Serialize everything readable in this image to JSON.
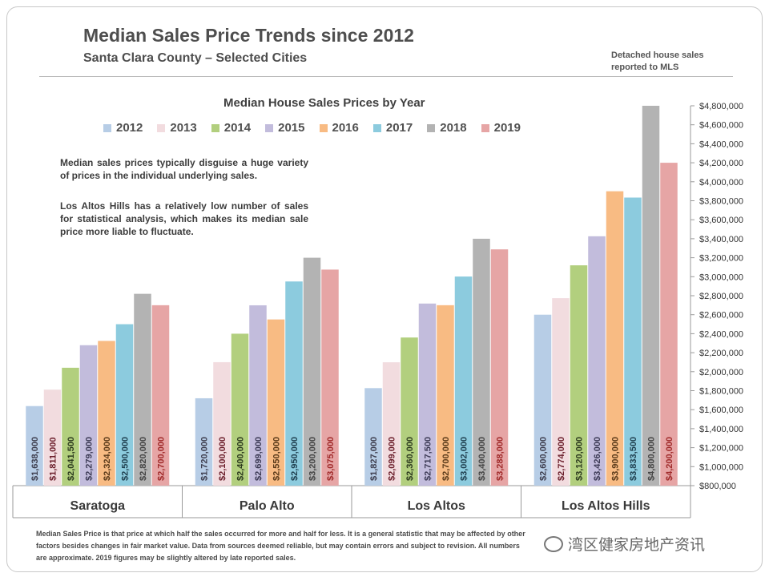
{
  "header": {
    "title": "Median Sales Price Trends since 2012",
    "subtitle": "Santa Clara County – Selected Cities",
    "source_note": "Detached house sales reported to MLS"
  },
  "notes": {
    "paragraph1": "Median sales prices typically disguise a huge variety of prices in the individual underlying sales.",
    "paragraph2": "Los Altos Hills has a relatively low number of sales for statistical analysis, which makes its median sale price more liable to fluctuate."
  },
  "footnote": "Median Sales Price is that price at which half the sales occurred for more and half for less. It is a general statistic that may be affected by other factors besides changes in fair market value. Data from sources deemed reliable, but may contain errors and subject to revision.  All numbers are approximate. 2019 figures may be slightly altered by late reported sales.",
  "watermark": "湾区健家房地产资讯",
  "chart_data": {
    "type": "bar",
    "title": "Median House Sales Prices by Year",
    "categories": [
      "Saratoga",
      "Palo Alto",
      "Los Altos",
      "Los Altos Hills"
    ],
    "ylim": [
      800000,
      4800000
    ],
    "y_axis_position": "right",
    "y_ticks": [
      800000,
      1000000,
      1200000,
      1400000,
      1600000,
      1800000,
      2000000,
      2200000,
      2400000,
      2600000,
      2800000,
      3000000,
      3200000,
      3400000,
      3600000,
      3800000,
      4000000,
      4200000,
      4400000,
      4600000,
      4800000
    ],
    "y_tick_labels": [
      "$800,000",
      "$1,000,000",
      "$1,200,000",
      "$1,400,000",
      "$1,600,000",
      "$1,800,000",
      "$2,000,000",
      "$2,200,000",
      "$2,400,000",
      "$2,600,000",
      "$2,800,000",
      "$3,000,000",
      "$3,200,000",
      "$3,400,000",
      "$3,600,000",
      "$3,800,000",
      "$4,000,000",
      "$4,200,000",
      "$4,400,000",
      "$4,600,000",
      "$4,800,000"
    ],
    "legend_position": "top",
    "series": [
      {
        "name": "2012",
        "color": "#b7cde6",
        "values": [
          1638000,
          1720000,
          1827000,
          2600000
        ],
        "labels": [
          "$1,638,000",
          "$1,720,000",
          "$1,827,000",
          "$2,600,000"
        ]
      },
      {
        "name": "2013",
        "color": "#f2dcdf",
        "values": [
          1811000,
          2100000,
          2099000,
          2774000
        ],
        "labels": [
          "$1,811,000",
          "$2,100,000",
          "$2,099,000",
          "$2,774,000"
        ]
      },
      {
        "name": "2014",
        "color": "#b2cf7e",
        "values": [
          2041500,
          2400000,
          2360000,
          3120000
        ],
        "labels": [
          "$2,041,500",
          "$2,400,000",
          "$2,360,000",
          "$3,120,000"
        ]
      },
      {
        "name": "2015",
        "color": "#c2bcdc",
        "values": [
          2279000,
          2699000,
          2717500,
          3426000
        ],
        "labels": [
          "$2,279,000",
          "$2,699,000",
          "$2,717,500",
          "$3,426,000"
        ]
      },
      {
        "name": "2016",
        "color": "#f8bb83",
        "values": [
          2324000,
          2550000,
          2700000,
          3900000
        ],
        "labels": [
          "$2,324,000",
          "$2,550,000",
          "$2,700,000",
          "$3,900,000"
        ]
      },
      {
        "name": "2017",
        "color": "#8ccbde",
        "values": [
          2500000,
          2950000,
          3002000,
          3833500
        ],
        "labels": [
          "$2,500,000",
          "$2,950,000",
          "$3,002,000",
          "$3,833,500"
        ]
      },
      {
        "name": "2018",
        "color": "#b3b3b3",
        "values": [
          2820000,
          3200000,
          3400000,
          4800000
        ],
        "labels": [
          "$2,820,000",
          "$3,200,000",
          "$3,400,000",
          "$4,800,000"
        ]
      },
      {
        "name": "2019",
        "color": "#e6a5a5",
        "values": [
          2700000,
          3075000,
          3288000,
          4200000
        ],
        "labels": [
          "$2,700,000",
          "$3,075,000",
          "$3,288,000",
          "$4,200,000"
        ]
      }
    ],
    "label_colors": {
      "2012": "#3e3e4e",
      "2013": "#6a1d2a",
      "2014": "#2c3a1e",
      "2015": "#3c3a55",
      "2016": "#5a3a1a",
      "2017": "#1f3f4f",
      "2018": "#444444",
      "2019": "#a02a2a"
    }
  }
}
